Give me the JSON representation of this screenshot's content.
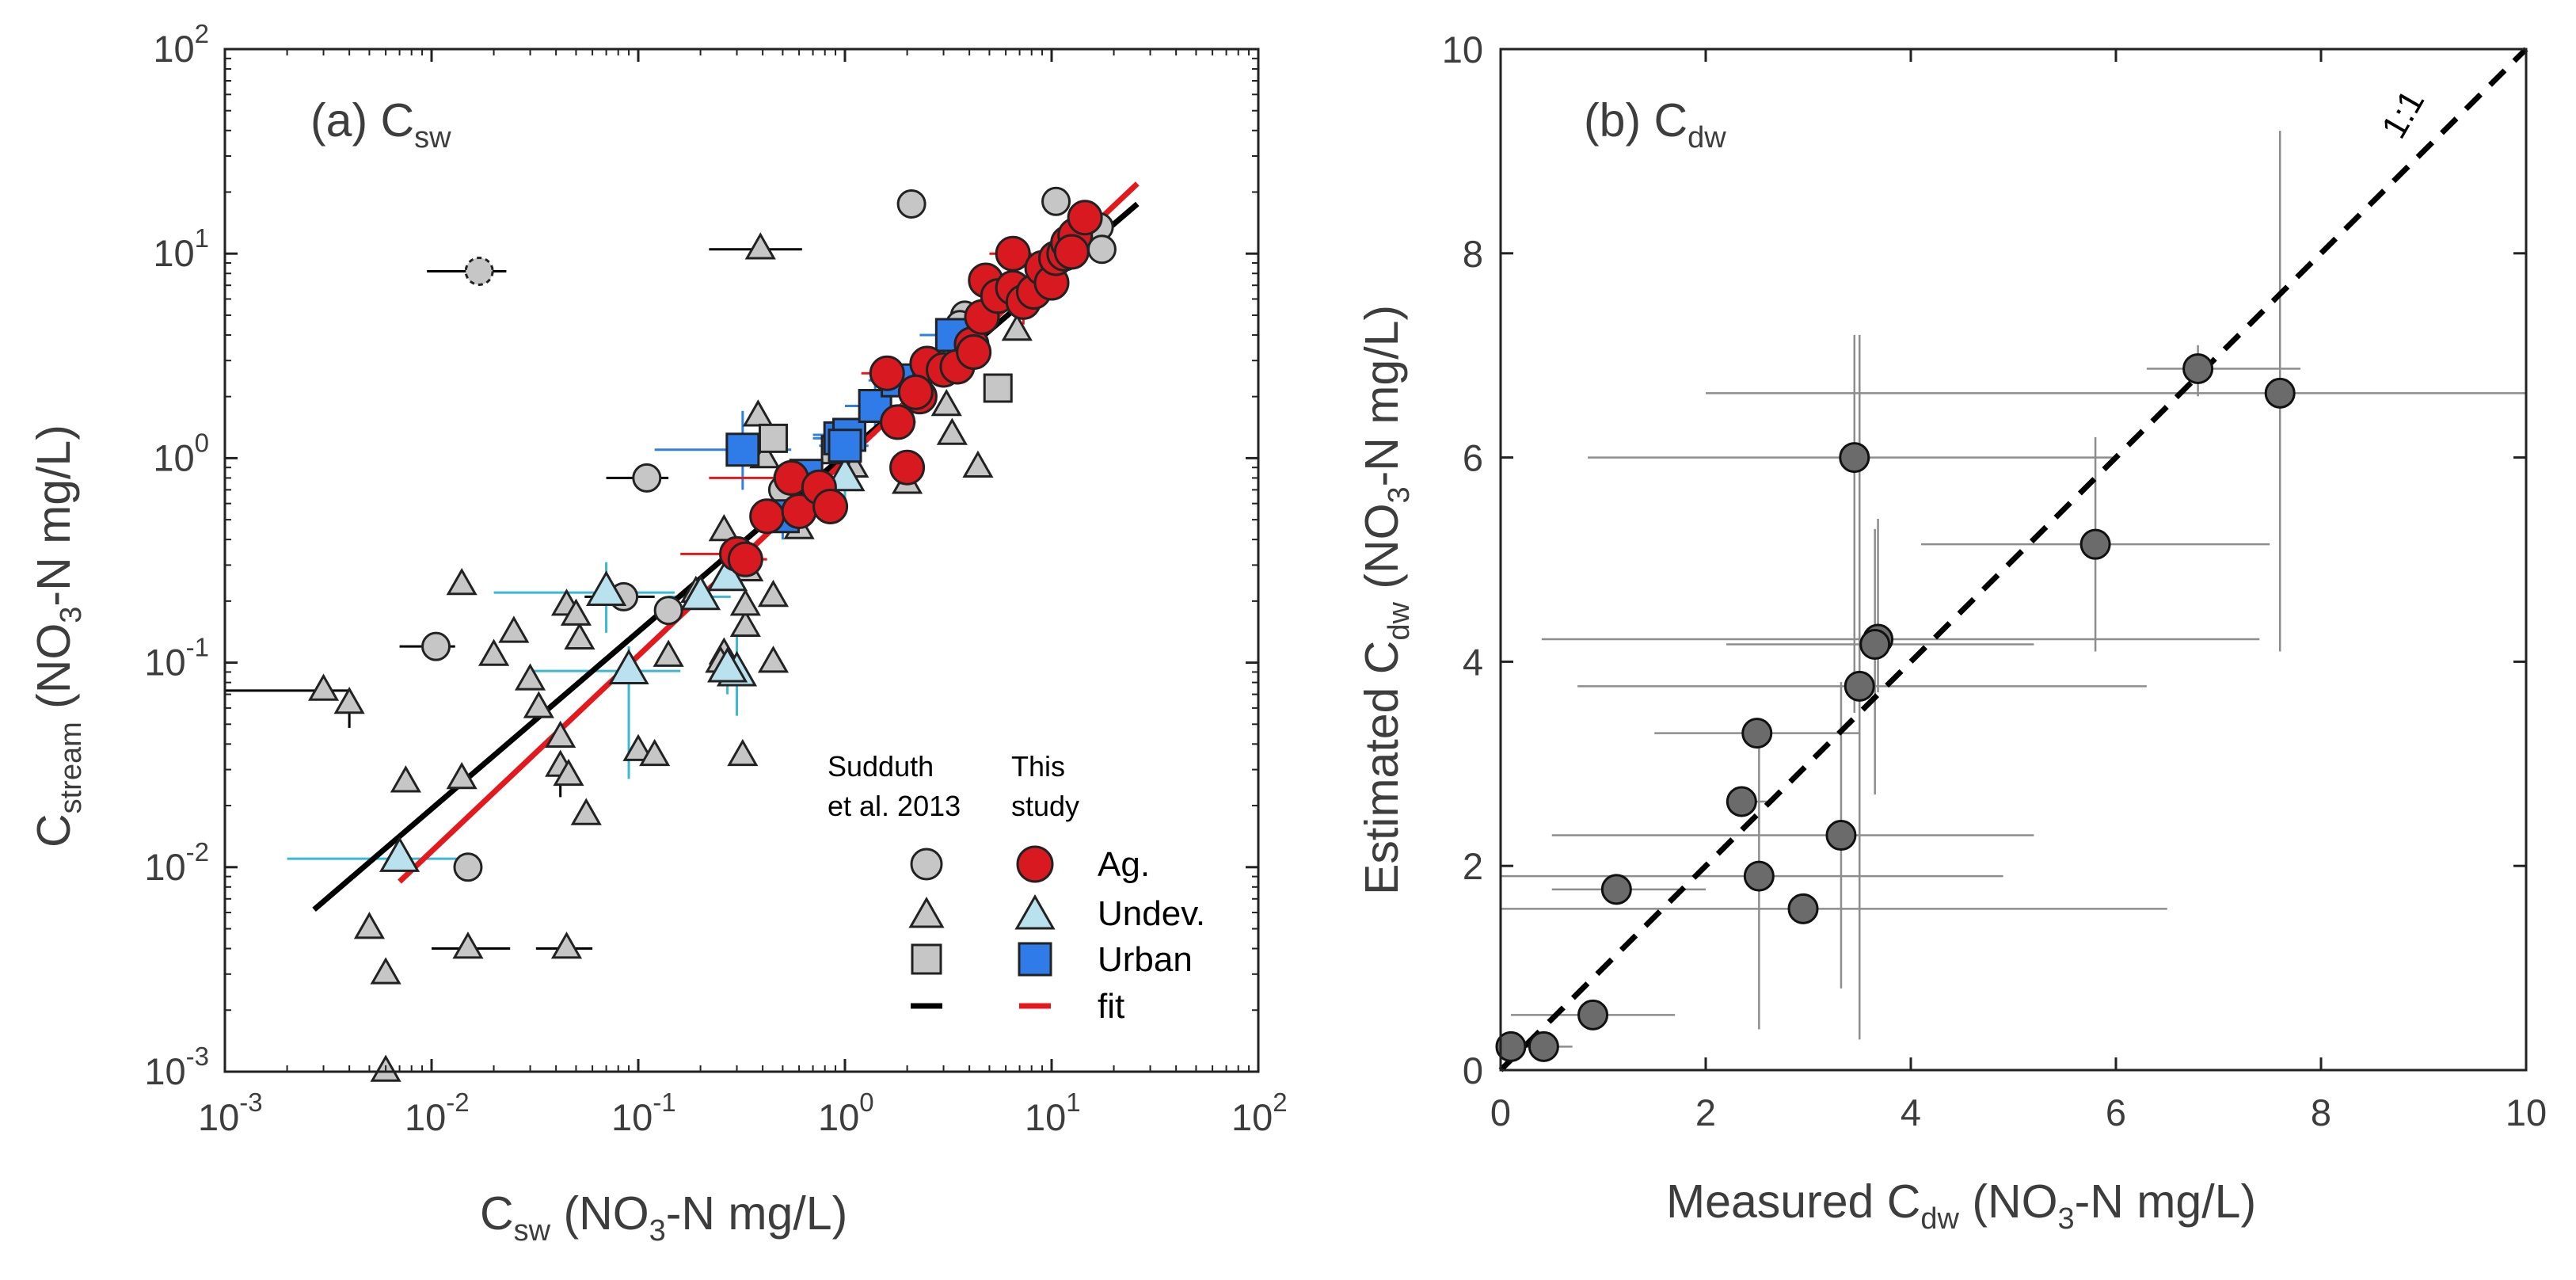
{
  "colors": {
    "ag": "#d8191f",
    "urban": "#2f7be8",
    "undev_this": "#b9e1ee",
    "sudduth": "#c6c6c6",
    "fit_sudduth": "#000000",
    "fit_this": "#e4191d",
    "err_red": "#e4191d",
    "err_blue": "#2f80e0",
    "err_cyan": "#3cb8d0",
    "panel_b_point": "#6b6b6b",
    "panel_b_err": "#8d8d8d"
  },
  "chart_data": [
    {
      "type": "scatter",
      "panel": "(a)",
      "title": "(a) C",
      "title_sub": "sw",
      "xlabel": {
        "main": "C",
        "sub": "sw",
        "rest1": " (NO",
        "sub2": "3",
        "rest2": "-N mg/L)"
      },
      "ylabel": {
        "main": "C",
        "sub": "stream",
        "rest1": " (NO",
        "sub2": "3",
        "rest2": "-N mg/L)"
      },
      "x_scale": "log",
      "y_scale": "log",
      "xlim": [
        0.001,
        100
      ],
      "ylim": [
        0.001,
        100
      ],
      "grid": false,
      "x_ticks": [
        {
          "value": 0.001,
          "base": "10",
          "exp": "-3"
        },
        {
          "value": 0.01,
          "base": "10",
          "exp": "-2"
        },
        {
          "value": 0.1,
          "base": "10",
          "exp": "-1"
        },
        {
          "value": 1,
          "base": "10",
          "exp": "0"
        },
        {
          "value": 10,
          "base": "10",
          "exp": "1"
        },
        {
          "value": 100,
          "base": "10",
          "exp": "2"
        }
      ],
      "y_ticks": [
        {
          "value": 0.001,
          "base": "10",
          "exp": "-3"
        },
        {
          "value": 0.01,
          "base": "10",
          "exp": "-2"
        },
        {
          "value": 0.1,
          "base": "10",
          "exp": "-1"
        },
        {
          "value": 1,
          "base": "10",
          "exp": "0"
        },
        {
          "value": 10,
          "base": "10",
          "exp": "1"
        },
        {
          "value": 100,
          "base": "10",
          "exp": "2"
        }
      ],
      "legend": {
        "placement": "bottom-right",
        "column_headers": [
          [
            "Sudduth",
            "et al. 2013"
          ],
          [
            "This",
            "study"
          ]
        ],
        "rows": [
          "Ag.",
          "Undev.",
          "Urban",
          "fit"
        ]
      },
      "fits": [
        {
          "group": "sudduth",
          "x": [
            0.0027,
            26
          ],
          "y": [
            0.0062,
            17.5
          ]
        },
        {
          "group": "this",
          "x": [
            0.007,
            26
          ],
          "y": [
            0.0085,
            22
          ]
        }
      ],
      "series": [
        {
          "group": "sudduth",
          "marker": "triangle",
          "points": [
            {
              "x": 0.39,
              "y": 10.5,
              "ex": [
                0.22,
                0.62
              ]
            },
            {
              "x": 0.014,
              "y": 0.24
            },
            {
              "x": 0.003,
              "y": 0.073,
              "ex": [
                0.001,
                0.004
              ]
            },
            {
              "x": 0.004,
              "y": 0.063,
              "ey": [
                0.048,
                0.063
              ]
            },
            {
              "x": 0.0075,
              "y": 0.026
            },
            {
              "x": 0.014,
              "y": 0.027
            },
            {
              "x": 0.005,
              "y": 0.005
            },
            {
              "x": 0.006,
              "y": 0.003
            },
            {
              "x": 0.006,
              "y": 0.001
            },
            {
              "x": 0.015,
              "y": 0.004,
              "ex": [
                0.01,
                0.024
              ]
            },
            {
              "x": 0.045,
              "y": 0.004,
              "ex": [
                0.032,
                0.06
              ]
            },
            {
              "x": 0.02,
              "y": 0.108
            },
            {
              "x": 0.025,
              "y": 0.14
            },
            {
              "x": 0.03,
              "y": 0.082
            },
            {
              "x": 0.033,
              "y": 0.06
            },
            {
              "x": 0.045,
              "y": 0.19
            },
            {
              "x": 0.042,
              "y": 0.043
            },
            {
              "x": 0.042,
              "y": 0.031,
              "ey": [
                0.022,
                0.031
              ]
            },
            {
              "x": 0.046,
              "y": 0.028
            },
            {
              "x": 0.056,
              "y": 0.018
            },
            {
              "x": 0.052,
              "y": 0.13
            },
            {
              "x": 0.1,
              "y": 0.037
            },
            {
              "x": 0.12,
              "y": 0.035
            },
            {
              "x": 0.14,
              "y": 0.107
            },
            {
              "x": 0.19,
              "y": 0.22
            },
            {
              "x": 0.26,
              "y": 0.44
            },
            {
              "x": 0.3,
              "y": 0.09
            },
            {
              "x": 0.33,
              "y": 0.15
            },
            {
              "x": 0.32,
              "y": 0.035
            },
            {
              "x": 0.33,
              "y": 0.19
            },
            {
              "x": 0.34,
              "y": 0.28
            },
            {
              "x": 0.38,
              "y": 1.6
            },
            {
              "x": 0.41,
              "y": 1.0
            },
            {
              "x": 0.45,
              "y": 0.1
            },
            {
              "x": 0.45,
              "y": 0.21
            },
            {
              "x": 0.6,
              "y": 0.45
            },
            {
              "x": 0.85,
              "y": 0.65
            },
            {
              "x": 1.1,
              "y": 0.9
            },
            {
              "x": 2.0,
              "y": 0.75
            },
            {
              "x": 3.3,
              "y": 1.3
            },
            {
              "x": 3.1,
              "y": 1.8
            },
            {
              "x": 4.4,
              "y": 0.9
            },
            {
              "x": 6.8,
              "y": 4.2
            },
            {
              "x": 0.05,
              "y": 0.17
            },
            {
              "x": 0.26,
              "y": 0.11
            },
            {
              "x": 0.25,
              "y": 0.1
            }
          ]
        },
        {
          "group": "sudduth",
          "marker": "circle",
          "points": [
            {
              "x": 0.0105,
              "y": 0.12,
              "ex": [
                0.007,
                0.013
              ]
            },
            {
              "x": 0.015,
              "y": 0.01
            },
            {
              "x": 0.017,
              "y": 8.2,
              "dashed": true,
              "ex": [
                0.0095,
                0.023
              ]
            },
            {
              "x": 0.11,
              "y": 0.8,
              "ex": [
                0.07,
                0.14
              ]
            },
            {
              "x": 0.085,
              "y": 0.21,
              "ex": [
                0.055,
                0.12
              ]
            },
            {
              "x": 0.14,
              "y": 0.18
            },
            {
              "x": 2.1,
              "y": 17.5
            },
            {
              "x": 3.8,
              "y": 5.0
            },
            {
              "x": 3.6,
              "y": 4.5
            },
            {
              "x": 10.5,
              "y": 18
            },
            {
              "x": 17,
              "y": 13.5
            },
            {
              "x": 17.5,
              "y": 10.5
            },
            {
              "x": 0.5,
              "y": 0.7
            }
          ]
        },
        {
          "group": "sudduth",
          "marker": "square",
          "points": [
            {
              "x": 0.45,
              "y": 1.25
            },
            {
              "x": 0.9,
              "y": 1.1
            },
            {
              "x": 5.5,
              "y": 2.2
            }
          ]
        },
        {
          "group": "this",
          "marker": "triangle",
          "label": "Undev.",
          "points": [
            {
              "x": 0.007,
              "y": 0.011,
              "ex": [
                0.002,
                0.015
              ]
            },
            {
              "x": 0.07,
              "y": 0.22,
              "ex": [
                0.02,
                0.15
              ],
              "ey": [
                0.14,
                0.31
              ]
            },
            {
              "x": 0.09,
              "y": 0.091,
              "ex": [
                0.03,
                0.16
              ],
              "ey": [
                0.027,
                0.12
              ]
            },
            {
              "x": 0.3,
              "y": 0.089,
              "ey": [
                0.055,
                0.14
              ]
            },
            {
              "x": 0.27,
              "y": 0.093,
              "ey": [
                0.07,
                0.12
              ]
            },
            {
              "x": 0.2,
              "y": 0.21,
              "ex": [
                0.14,
                0.28
              ]
            },
            {
              "x": 0.27,
              "y": 0.26
            },
            {
              "x": 1.0,
              "y": 0.8,
              "ey": [
                0.6,
                1.0
              ]
            }
          ]
        },
        {
          "group": "this",
          "marker": "square",
          "label": "Urban",
          "points": [
            {
              "x": 0.32,
              "y": 1.1,
              "ex": [
                0.12,
                0.55
              ],
              "ey": [
                0.7,
                1.7
              ]
            },
            {
              "x": 0.5,
              "y": 0.52,
              "ey": [
                0.4,
                0.62
              ]
            },
            {
              "x": 0.65,
              "y": 0.82,
              "ex": [
                0.45,
                0.85
              ]
            },
            {
              "x": 0.95,
              "y": 1.25,
              "ex": [
                0.7,
                1.2
              ],
              "ey": [
                1.0,
                1.5
              ]
            },
            {
              "x": 1.05,
              "y": 1.3,
              "ex": [
                0.7,
                1.4
              ]
            },
            {
              "x": 1.0,
              "y": 1.15,
              "ex": [
                0.75,
                1.3
              ]
            },
            {
              "x": 1.4,
              "y": 1.8,
              "ex": [
                1.0,
                1.8
              ],
              "ey": [
                1.3,
                2.4
              ]
            },
            {
              "x": 1.8,
              "y": 2.4,
              "ex": [
                1.3,
                2.3
              ]
            },
            {
              "x": 3.3,
              "y": 4.0,
              "ex": [
                2.3,
                4.3
              ]
            }
          ]
        },
        {
          "group": "this",
          "marker": "circle",
          "label": "Ag.",
          "points": [
            {
              "x": 0.3,
              "y": 0.34,
              "ex": [
                0.16,
                0.38
              ]
            },
            {
              "x": 0.33,
              "y": 0.32,
              "ex": [
                0.28,
                0.42
              ]
            },
            {
              "x": 0.42,
              "y": 0.52,
              "ey": [
                0.42,
                0.62
              ]
            },
            {
              "x": 0.55,
              "y": 0.8,
              "ex": [
                0.22,
                0.8
              ]
            },
            {
              "x": 0.6,
              "y": 0.55,
              "ex": [
                0.45,
                0.75
              ]
            },
            {
              "x": 0.75,
              "y": 0.72,
              "ey": [
                0.55,
                0.9
              ]
            },
            {
              "x": 0.85,
              "y": 0.58,
              "ex": [
                0.7,
                1.0
              ]
            },
            {
              "x": 2.0,
              "y": 0.9,
              "ey": [
                0.7,
                1.05
              ]
            },
            {
              "x": 1.8,
              "y": 1.5,
              "ex": [
                1.5,
                2.2
              ]
            },
            {
              "x": 2.3,
              "y": 2.0
            },
            {
              "x": 1.6,
              "y": 2.6,
              "ex": [
                1.2,
                2.0
              ]
            },
            {
              "x": 2.5,
              "y": 2.9
            },
            {
              "x": 2.2,
              "y": 2.1
            },
            {
              "x": 3.0,
              "y": 2.7,
              "ex": [
                2.4,
                3.8
              ]
            },
            {
              "x": 3.5,
              "y": 2.8
            },
            {
              "x": 4.1,
              "y": 3.6,
              "ey": [
                3.0,
                4.5
              ]
            },
            {
              "x": 4.2,
              "y": 3.3
            },
            {
              "x": 4.6,
              "y": 4.9
            },
            {
              "x": 4.8,
              "y": 7.4
            },
            {
              "x": 5.5,
              "y": 6.2
            },
            {
              "x": 6.5,
              "y": 10,
              "ex": [
                5.0,
                8.0
              ]
            },
            {
              "x": 6.5,
              "y": 6.8
            },
            {
              "x": 7.3,
              "y": 5.8,
              "ey": [
                4.5,
                7.2
              ]
            },
            {
              "x": 8.2,
              "y": 6.5
            },
            {
              "x": 9.0,
              "y": 8.5,
              "ex": [
                7.5,
                11
              ]
            },
            {
              "x": 10.0,
              "y": 7.2
            },
            {
              "x": 10.5,
              "y": 9.5
            },
            {
              "x": 11.5,
              "y": 10.0
            },
            {
              "x": 12.0,
              "y": 11.3
            },
            {
              "x": 13.0,
              "y": 12.3
            },
            {
              "x": 14.5,
              "y": 15.0
            },
            {
              "x": 12.5,
              "y": 10.2
            }
          ]
        }
      ]
    },
    {
      "type": "scatter",
      "panel": "(b)",
      "title": "(b) C",
      "title_sub": "dw",
      "xlabel": {
        "main": "Measured C",
        "sub": "dw",
        "rest1": " (NO",
        "sub2": "3",
        "rest2": "-N mg/L)"
      },
      "ylabel": {
        "main": "Estimated C",
        "sub": "dw",
        "rest1": " (NO",
        "sub2": "3",
        "rest2": "-N mg/L)"
      },
      "xlim": [
        0,
        10
      ],
      "ylim": [
        0,
        10
      ],
      "x_ticks": [
        0,
        2,
        4,
        6,
        8,
        10
      ],
      "y_ticks": [
        0,
        2,
        4,
        6,
        8,
        10
      ],
      "grid": false,
      "reference_line": {
        "label": "1:1",
        "x": [
          0,
          10
        ],
        "y": [
          0,
          10
        ]
      },
      "points": [
        {
          "x": 0.1,
          "y": 0.23,
          "ex": [
            0.0,
            0.3
          ]
        },
        {
          "x": 0.42,
          "y": 0.23,
          "ex": [
            0.15,
            0.7
          ]
        },
        {
          "x": 0.9,
          "y": 0.54,
          "ex": [
            0.1,
            1.7
          ]
        },
        {
          "x": 1.13,
          "y": 1.77,
          "ex": [
            0.5,
            2.0
          ],
          "ey": [
            1.7,
            1.85
          ]
        },
        {
          "x": 2.35,
          "y": 2.63,
          "ex": [
            2.2,
            2.6
          ]
        },
        {
          "x": 2.5,
          "y": 3.3,
          "ex": [
            1.5,
            3.5
          ]
        },
        {
          "x": 2.52,
          "y": 1.9,
          "ex": [
            0.0,
            4.9
          ],
          "ey": [
            0.4,
            3.4
          ]
        },
        {
          "x": 2.95,
          "y": 1.58,
          "ex": [
            0.0,
            6.5
          ]
        },
        {
          "x": 3.32,
          "y": 2.3,
          "ex": [
            0.5,
            5.2
          ],
          "ey": [
            0.8,
            3.8
          ]
        },
        {
          "x": 3.45,
          "y": 6.0,
          "ex": [
            0.85,
            6.0
          ],
          "ey": [
            3.5,
            7.2
          ]
        },
        {
          "x": 3.5,
          "y": 3.76,
          "ex": [
            0.75,
            6.3
          ],
          "ey": [
            0.3,
            7.2
          ]
        },
        {
          "x": 3.68,
          "y": 4.22,
          "ex": [
            0.4,
            7.4
          ],
          "ey": [
            3.7,
            5.4
          ]
        },
        {
          "x": 3.65,
          "y": 4.17,
          "ex": [
            2.2,
            5.2
          ],
          "ey": [
            2.7,
            5.3
          ]
        },
        {
          "x": 5.8,
          "y": 5.15,
          "ex": [
            4.1,
            7.5
          ],
          "ey": [
            4.1,
            6.2
          ]
        },
        {
          "x": 6.8,
          "y": 6.87,
          "ex": [
            6.3,
            7.8
          ],
          "ey": [
            6.6,
            7.1
          ]
        },
        {
          "x": 7.6,
          "y": 6.63,
          "ex": [
            2.0,
            10
          ],
          "ey": [
            4.1,
            9.2
          ]
        }
      ]
    }
  ]
}
